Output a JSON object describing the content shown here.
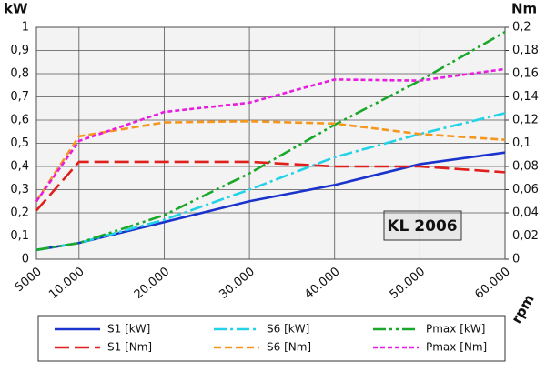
{
  "chart_data": {
    "type": "line",
    "y_label": "kW",
    "y2_label": "Nm",
    "x_label": "rpm",
    "annotation": "KL 2006",
    "x": [
      5000,
      10000,
      20000,
      30000,
      40000,
      50000,
      60000
    ],
    "xlim": [
      5000,
      60000
    ],
    "xticks": [
      5000,
      {
        "value": 10000,
        "label": "10.000"
      },
      {
        "value": 20000,
        "label": "20.000"
      },
      {
        "value": 30000,
        "label": "30.000"
      },
      {
        "value": 40000,
        "label": "40.000"
      },
      {
        "value": 50000,
        "label": "50.000"
      },
      {
        "value": 60000,
        "label": "60.000"
      }
    ],
    "ylim": [
      0,
      1
    ],
    "yticks": [
      0,
      {
        "value": 0.1,
        "label": "0,1"
      },
      {
        "value": 0.2,
        "label": "0,2"
      },
      {
        "value": 0.3,
        "label": "0,3"
      },
      {
        "value": 0.4,
        "label": "0,4"
      },
      {
        "value": 0.5,
        "label": "0,5"
      },
      {
        "value": 0.6,
        "label": "0,6"
      },
      {
        "value": 0.7,
        "label": "0,7"
      },
      {
        "value": 0.8,
        "label": "0,8"
      },
      {
        "value": 0.9,
        "label": "0,9"
      },
      1
    ],
    "y2lim": [
      0,
      0.2
    ],
    "y2ticks": [
      0,
      {
        "value": 0.02,
        "label": "0,02"
      },
      {
        "value": 0.04,
        "label": "0,04"
      },
      {
        "value": 0.06,
        "label": "0,06"
      },
      {
        "value": 0.08,
        "label": "0,08"
      },
      {
        "value": 0.1,
        "label": "0,1"
      },
      {
        "value": 0.12,
        "label": "0,12"
      },
      {
        "value": 0.14,
        "label": "0,14"
      },
      {
        "value": 0.16,
        "label": "0,16"
      },
      {
        "value": 0.18,
        "label": "0,18"
      },
      {
        "value": 0.2,
        "label": "0,2"
      }
    ],
    "grid": true,
    "series": [
      {
        "name": "S1 [kW]",
        "color": "#1a33cc",
        "dash": "solid",
        "values": [
          0.04,
          0.07,
          0.16,
          0.25,
          0.32,
          0.41,
          0.46
        ]
      },
      {
        "name": "S6 [kW]",
        "color": "#22d3e8",
        "dash": "dashdot",
        "values": [
          0.04,
          0.07,
          0.17,
          0.3,
          0.44,
          0.54,
          0.63
        ]
      },
      {
        "name": "Pmax [kW]",
        "color": "#1aa82a",
        "dash": "dashdotdot",
        "values": [
          0.04,
          0.07,
          0.19,
          0.37,
          0.58,
          0.77,
          0.98
        ]
      },
      {
        "name": "S1 [Nm]",
        "color": "#e0201c",
        "dash": "longdash",
        "axis": "y2",
        "values": [
          0.042,
          0.084,
          0.084,
          0.084,
          0.08,
          0.08,
          0.075
        ]
      },
      {
        "name": "S6 [Nm]",
        "color": "#f5961e",
        "dash": "dash",
        "axis": "y2",
        "values": [
          0.05,
          0.106,
          0.118,
          0.119,
          0.117,
          0.108,
          0.103
        ]
      },
      {
        "name": "Pmax [Nm]",
        "color": "#e81ce0",
        "dash": "shortdash",
        "axis": "y2",
        "values": [
          0.05,
          0.102,
          0.127,
          0.135,
          0.155,
          0.154,
          0.164
        ]
      }
    ]
  }
}
